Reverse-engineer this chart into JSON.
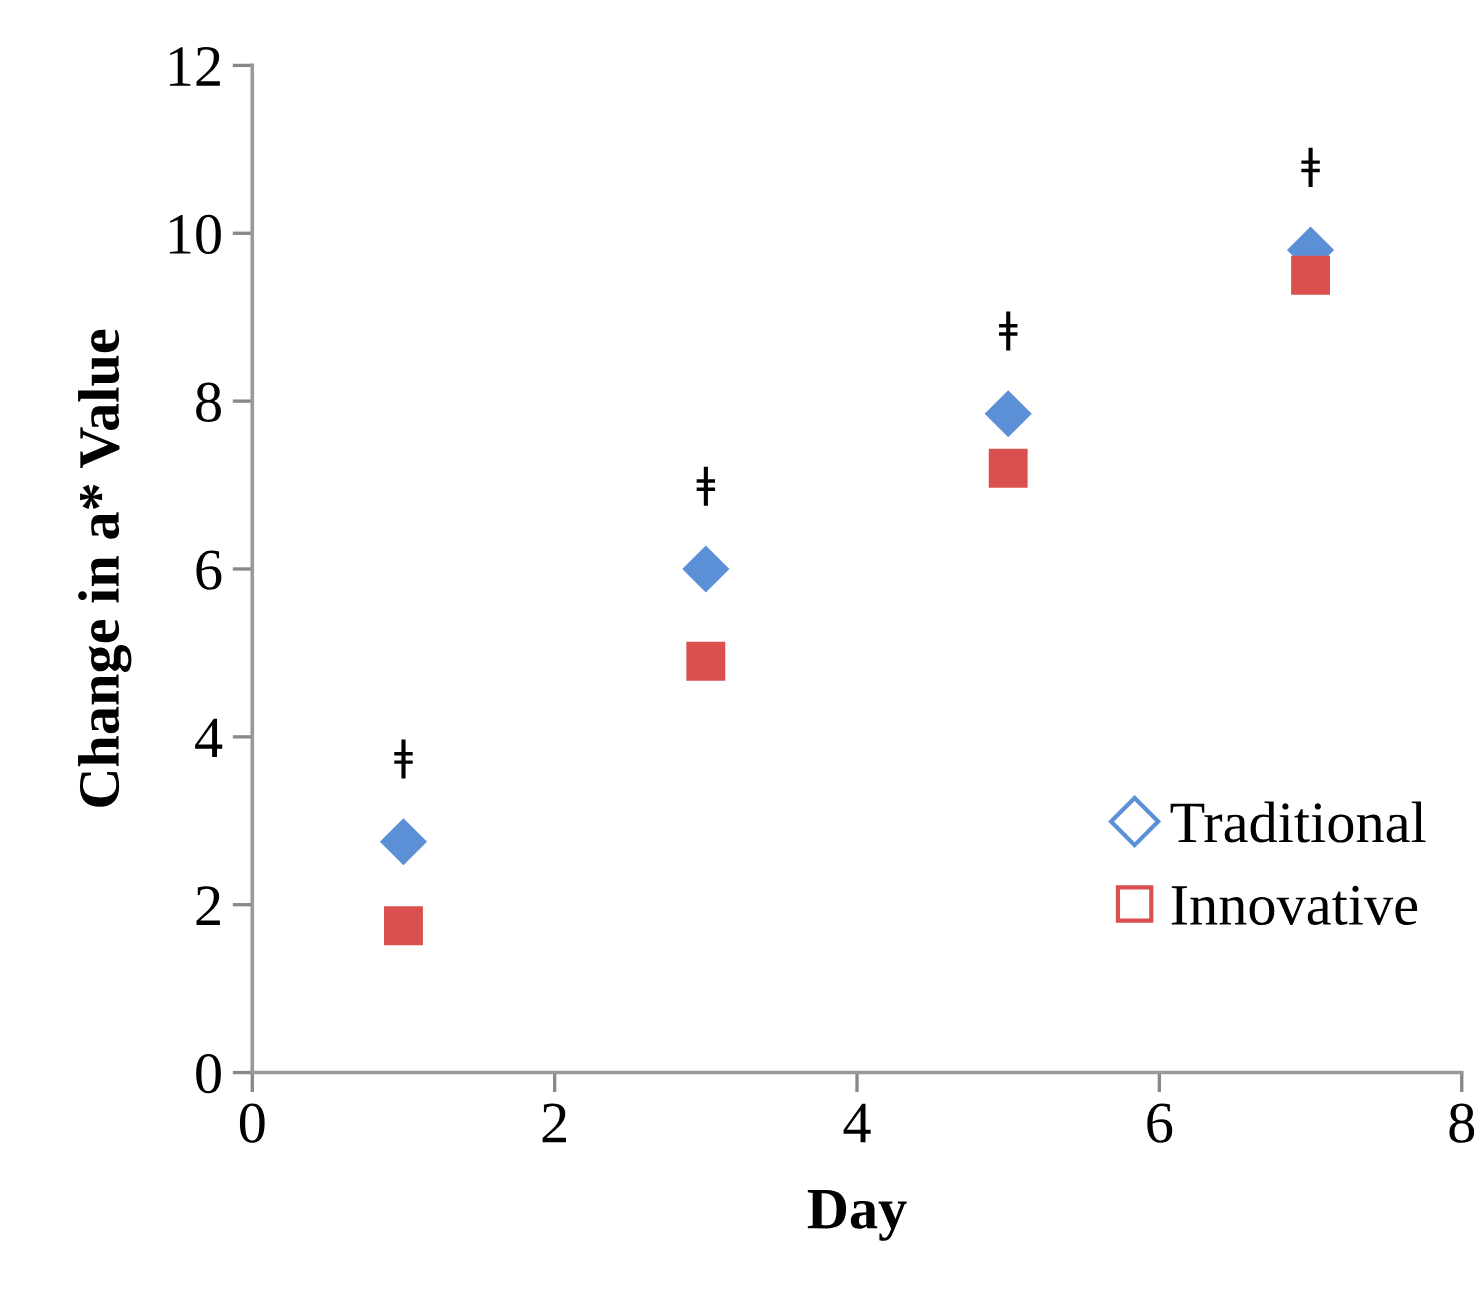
{
  "chart_data": {
    "type": "scatter",
    "xlabel": "Day",
    "ylabel": "Change in a* Value",
    "x": [
      1,
      3,
      5,
      7
    ],
    "series": [
      {
        "name": "Traditional",
        "color": "#5b8fd6",
        "marker": "diamond",
        "values": [
          2.75,
          6.0,
          7.85,
          9.8
        ]
      },
      {
        "name": "Innovative",
        "color": "#d9504f",
        "marker": "square",
        "values": [
          1.75,
          4.9,
          7.2,
          9.5
        ]
      }
    ],
    "annotations": [
      "ǂ",
      "ǂ",
      "ǂ",
      "ǂ"
    ],
    "xlim": [
      0,
      8
    ],
    "xticks": [
      0,
      2,
      4,
      6,
      8
    ],
    "ylim": [
      0,
      12
    ],
    "yticks": [
      0,
      2,
      4,
      6,
      8,
      10,
      12
    ],
    "grid": false,
    "legend": "lower right"
  }
}
